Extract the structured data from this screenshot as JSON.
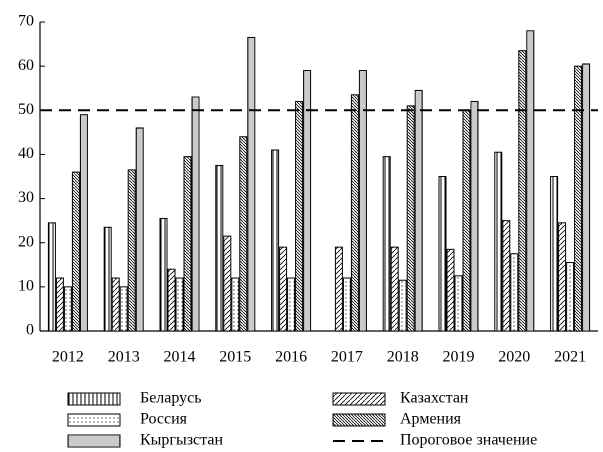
{
  "chart_data": {
    "type": "bar",
    "categories": [
      "2012",
      "2013",
      "2014",
      "2015",
      "2016",
      "2017",
      "2018",
      "2019",
      "2020",
      "2021"
    ],
    "series": [
      {
        "name": "Беларусь",
        "color": "#000000",
        "values": [
          24.5,
          23.5,
          25.5,
          37.5,
          41,
          null,
          39.5,
          35,
          40.5,
          35
        ]
      },
      {
        "name": "Казахстан",
        "color": "#000000",
        "values": [
          12,
          12,
          14,
          21.5,
          19,
          19,
          19,
          18.5,
          25,
          24.5
        ]
      },
      {
        "name": "Россия",
        "color": "#000000",
        "values": [
          10,
          10,
          12,
          12,
          12,
          12,
          11.5,
          12.5,
          17.5,
          15.5
        ]
      },
      {
        "name": "Армения",
        "color": "#000000",
        "values": [
          36,
          36.5,
          39.5,
          44,
          52,
          53.5,
          51,
          50,
          63.5,
          60
        ]
      },
      {
        "name": "Кыргызстан",
        "color": "#000000",
        "values": [
          49,
          46,
          53,
          66.5,
          59,
          59,
          54.5,
          52,
          68,
          60.5
        ]
      }
    ],
    "threshold": {
      "name": "Пороговое значение",
      "value": 50
    },
    "ylim": [
      0,
      70
    ],
    "yticks": [
      0,
      10,
      20,
      30,
      40,
      50,
      60,
      70
    ],
    "grid": false
  }
}
